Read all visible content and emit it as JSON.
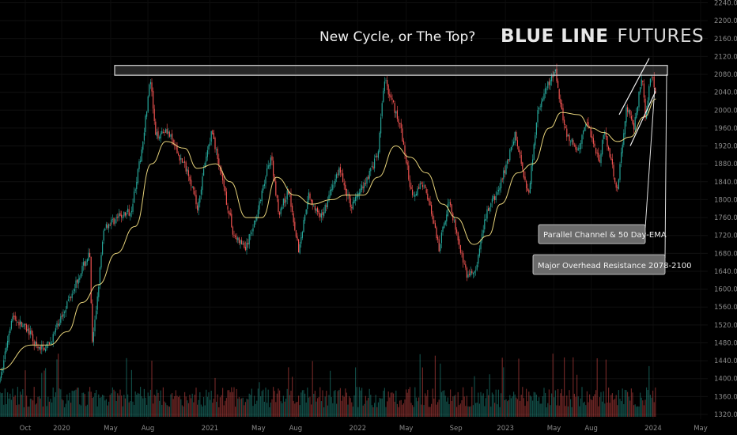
{
  "chart_data": {
    "type": "candlestick",
    "title": "New Cycle, or The Top?",
    "brand": {
      "bold": "BLUE LINE",
      "light": "FUTURES"
    },
    "y_axis": {
      "position": "right",
      "ylim": [
        1310,
        2250
      ],
      "ticks": [
        "2240.0",
        "2200.0",
        "2160.0",
        "2120.0",
        "2080.0",
        "2040.0",
        "2000.0",
        "1960.0",
        "1920.0",
        "1880.0",
        "1840.0",
        "1800.0",
        "1760.0",
        "1720.0",
        "1680.0",
        "1640.0",
        "1600.0",
        "1560.0",
        "1520.0",
        "1480.0",
        "1440.0",
        "1400.0",
        "1360.0",
        "1320.0"
      ]
    },
    "x_axis": {
      "labels": [
        {
          "text": "Oct",
          "date": "2019-10"
        },
        {
          "text": "2020",
          "date": "2020-01"
        },
        {
          "text": "May",
          "date": "2020-05"
        },
        {
          "text": "Aug",
          "date": "2020-08"
        },
        {
          "text": "2021",
          "date": "2021-01"
        },
        {
          "text": "May",
          "date": "2021-05"
        },
        {
          "text": "Aug",
          "date": "2021-08"
        },
        {
          "text": "2022",
          "date": "2022-01"
        },
        {
          "text": "May",
          "date": "2022-05"
        },
        {
          "text": "Sep",
          "date": "2022-09"
        },
        {
          "text": "2023",
          "date": "2023-01"
        },
        {
          "text": "May",
          "date": "2023-05"
        },
        {
          "text": "Aug",
          "date": "2023-08"
        },
        {
          "text": "2024",
          "date": "2024-01"
        },
        {
          "text": "May",
          "date": "2024-05"
        }
      ]
    },
    "price_path": [
      [
        "2019-09-01",
        1395
      ],
      [
        "2019-09-15",
        1540
      ],
      [
        "2019-10-10",
        1505
      ],
      [
        "2019-11-01",
        1465
      ],
      [
        "2019-12-01",
        1475
      ],
      [
        "2020-01-10",
        1560
      ],
      [
        "2020-02-20",
        1645
      ],
      [
        "2020-03-10",
        1680
      ],
      [
        "2020-03-17",
        1470
      ],
      [
        "2020-04-15",
        1740
      ],
      [
        "2020-05-20",
        1760
      ],
      [
        "2020-06-20",
        1775
      ],
      [
        "2020-07-15",
        1900
      ],
      [
        "2020-08-07",
        2070
      ],
      [
        "2020-08-20",
        1940
      ],
      [
        "2020-09-15",
        1960
      ],
      [
        "2020-10-15",
        1900
      ],
      [
        "2020-11-10",
        1860
      ],
      [
        "2020-12-01",
        1780
      ],
      [
        "2020-12-20",
        1880
      ],
      [
        "2021-01-06",
        1955
      ],
      [
        "2021-02-01",
        1840
      ],
      [
        "2021-03-01",
        1720
      ],
      [
        "2021-03-31",
        1690
      ],
      [
        "2021-05-01",
        1780
      ],
      [
        "2021-06-01",
        1900
      ],
      [
        "2021-06-20",
        1770
      ],
      [
        "2021-07-15",
        1820
      ],
      [
        "2021-08-09",
        1685
      ],
      [
        "2021-09-01",
        1815
      ],
      [
        "2021-10-01",
        1755
      ],
      [
        "2021-11-16",
        1870
      ],
      [
        "2021-12-15",
        1785
      ],
      [
        "2022-01-20",
        1840
      ],
      [
        "2022-02-20",
        1900
      ],
      [
        "2022-03-08",
        2070
      ],
      [
        "2022-04-15",
        1970
      ],
      [
        "2022-05-15",
        1810
      ],
      [
        "2022-06-15",
        1840
      ],
      [
        "2022-07-21",
        1690
      ],
      [
        "2022-08-15",
        1800
      ],
      [
        "2022-09-27",
        1630
      ],
      [
        "2022-10-20",
        1640
      ],
      [
        "2022-11-15",
        1770
      ],
      [
        "2022-12-15",
        1820
      ],
      [
        "2023-01-25",
        1945
      ],
      [
        "2023-02-27",
        1810
      ],
      [
        "2023-03-20",
        1990
      ],
      [
        "2023-04-13",
        2050
      ],
      [
        "2023-05-04",
        2085
      ],
      [
        "2023-05-30",
        1950
      ],
      [
        "2023-06-29",
        1905
      ],
      [
        "2023-07-20",
        1980
      ],
      [
        "2023-08-21",
        1885
      ],
      [
        "2023-09-01",
        1955
      ],
      [
        "2023-10-05",
        1820
      ],
      [
        "2023-10-27",
        2010
      ],
      [
        "2023-11-15",
        1960
      ],
      [
        "2023-12-04",
        2080
      ],
      [
        "2023-12-13",
        1980
      ],
      [
        "2023-12-27",
        2085
      ],
      [
        "2024-01-08",
        2030
      ]
    ],
    "ema50_path": [
      [
        "2019-09-01",
        1420
      ],
      [
        "2019-10-15",
        1475
      ],
      [
        "2019-12-01",
        1475
      ],
      [
        "2020-01-15",
        1505
      ],
      [
        "2020-02-20",
        1570
      ],
      [
        "2020-04-01",
        1610
      ],
      [
        "2020-05-15",
        1680
      ],
      [
        "2020-06-30",
        1740
      ],
      [
        "2020-08-10",
        1880
      ],
      [
        "2020-09-15",
        1930
      ],
      [
        "2020-10-30",
        1915
      ],
      [
        "2020-12-01",
        1870
      ],
      [
        "2021-01-15",
        1880
      ],
      [
        "2021-02-20",
        1840
      ],
      [
        "2021-04-01",
        1760
      ],
      [
        "2021-05-10",
        1760
      ],
      [
        "2021-06-15",
        1850
      ],
      [
        "2021-07-30",
        1810
      ],
      [
        "2021-09-10",
        1790
      ],
      [
        "2021-10-30",
        1800
      ],
      [
        "2021-12-01",
        1810
      ],
      [
        "2022-01-15",
        1810
      ],
      [
        "2022-02-20",
        1850
      ],
      [
        "2022-04-05",
        1920
      ],
      [
        "2022-05-10",
        1895
      ],
      [
        "2022-06-20",
        1860
      ],
      [
        "2022-07-30",
        1790
      ],
      [
        "2022-09-01",
        1760
      ],
      [
        "2022-10-15",
        1700
      ],
      [
        "2022-11-20",
        1720
      ],
      [
        "2022-12-20",
        1790
      ],
      [
        "2023-02-01",
        1860
      ],
      [
        "2023-03-10",
        1880
      ],
      [
        "2023-04-20",
        1960
      ],
      [
        "2023-05-20",
        1995
      ],
      [
        "2023-06-30",
        1990
      ],
      [
        "2023-08-01",
        1960
      ],
      [
        "2023-09-01",
        1950
      ],
      [
        "2023-10-05",
        1930
      ],
      [
        "2023-11-05",
        1940
      ],
      [
        "2023-12-10",
        1985
      ],
      [
        "2024-01-08",
        2025
      ]
    ],
    "resistance_band": {
      "low": 2078,
      "high": 2100
    },
    "annotations": [
      {
        "text": "Parallel Channel & 50 Day-EMA"
      },
      {
        "text": "Major Overhead Resistance 2078-2100"
      }
    ],
    "colors": {
      "up": "#26a69a",
      "down": "#ef5350",
      "ema": "#e6d27a",
      "band": "#d8d8d8",
      "background": "#000000"
    }
  }
}
